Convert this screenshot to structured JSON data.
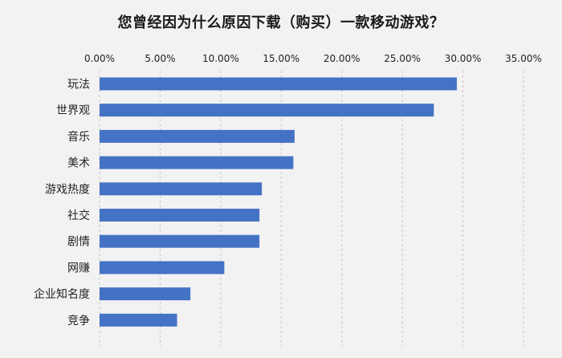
{
  "chart_data": {
    "type": "bar",
    "orientation": "horizontal",
    "title": "您曾经因为什么原因下载（购买）一款移动游戏？",
    "categories": [
      "玩法",
      "世界观",
      "音乐",
      "美术",
      "游戏热度",
      "社交",
      "剧情",
      "网赚",
      "企业知名度",
      "竞争"
    ],
    "values": [
      29.5,
      27.6,
      16.1,
      16.0,
      13.4,
      13.2,
      13.2,
      10.3,
      7.5,
      6.4
    ],
    "value_unit": "%",
    "xlim": [
      0,
      35
    ],
    "x_ticks": [
      0,
      5,
      10,
      15,
      20,
      25,
      30,
      35
    ],
    "x_tick_labels": [
      "0.00%",
      "5.00%",
      "10.00%",
      "15.00%",
      "20.00%",
      "25.00%",
      "30.00%",
      "35.00%"
    ],
    "x_axis_position": "top",
    "grid": "vertical dashed",
    "legend": "none",
    "bar_color": "#4472c4",
    "grid_color": "#c8c8c8",
    "background_color": "#f2f2f3"
  }
}
